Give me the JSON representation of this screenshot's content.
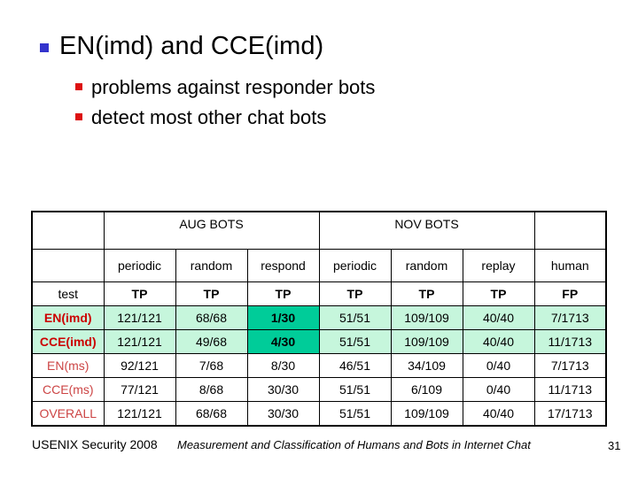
{
  "slide": {
    "title": "EN(imd) and CCE(imd)",
    "bullets": [
      "problems against responder bots",
      "detect most other chat bots"
    ],
    "title_bullet_color": "#3333CC",
    "sub_bullet_color": "#DD1111"
  },
  "table": {
    "group_headers": [
      {
        "label": "",
        "span": 1
      },
      {
        "label": "AUG BOTS",
        "span": 3
      },
      {
        "label": "NOV BOTS",
        "span": 3
      },
      {
        "label": "",
        "span": 1
      }
    ],
    "column_headers": [
      "",
      "periodic",
      "random",
      "respond",
      "periodic",
      "random",
      "replay",
      "human"
    ],
    "test_row": {
      "label": "test",
      "cells": [
        "TP",
        "TP",
        "TP",
        "TP",
        "TP",
        "TP",
        "FP"
      ]
    },
    "rows": [
      {
        "label": "EN(imd)",
        "bold": true,
        "bg": "mint",
        "cells": [
          {
            "v": "121/121"
          },
          {
            "v": "68/68"
          },
          {
            "v": "1/30",
            "highlight": true
          },
          {
            "v": "51/51"
          },
          {
            "v": "109/109"
          },
          {
            "v": "40/40"
          },
          {
            "v": "7/1713"
          }
        ]
      },
      {
        "label": "CCE(imd)",
        "bold": true,
        "bg": "mint",
        "cells": [
          {
            "v": "121/121"
          },
          {
            "v": "49/68"
          },
          {
            "v": "4/30",
            "highlight": true
          },
          {
            "v": "51/51"
          },
          {
            "v": "109/109"
          },
          {
            "v": "40/40"
          },
          {
            "v": "11/1713"
          }
        ]
      },
      {
        "label": "EN(ms)",
        "bold": false,
        "bg": "white",
        "cells": [
          {
            "v": "92/121"
          },
          {
            "v": "7/68"
          },
          {
            "v": "8/30"
          },
          {
            "v": "46/51"
          },
          {
            "v": "34/109"
          },
          {
            "v": "0/40"
          },
          {
            "v": "7/1713"
          }
        ]
      },
      {
        "label": "CCE(ms)",
        "bold": false,
        "bg": "white",
        "cells": [
          {
            "v": "77/121"
          },
          {
            "v": "8/68"
          },
          {
            "v": "30/30"
          },
          {
            "v": "51/51"
          },
          {
            "v": "6/109"
          },
          {
            "v": "0/40"
          },
          {
            "v": "11/1713"
          }
        ]
      },
      {
        "label": "OVERALL",
        "bold": false,
        "bg": "white",
        "cells": [
          {
            "v": "121/121"
          },
          {
            "v": "68/68"
          },
          {
            "v": "30/30"
          },
          {
            "v": "51/51"
          },
          {
            "v": "109/109"
          },
          {
            "v": "40/40"
          },
          {
            "v": "17/1713"
          }
        ]
      }
    ],
    "colors": {
      "mint": "#C6F6DC",
      "highlight": "#00CC99",
      "label_bold_color": "#CC0000",
      "label_color": "#CC4444"
    }
  },
  "footer": {
    "left": "USENIX Security 2008",
    "center": "Measurement and Classification of Humans and Bots in Internet Chat",
    "page": "31"
  }
}
